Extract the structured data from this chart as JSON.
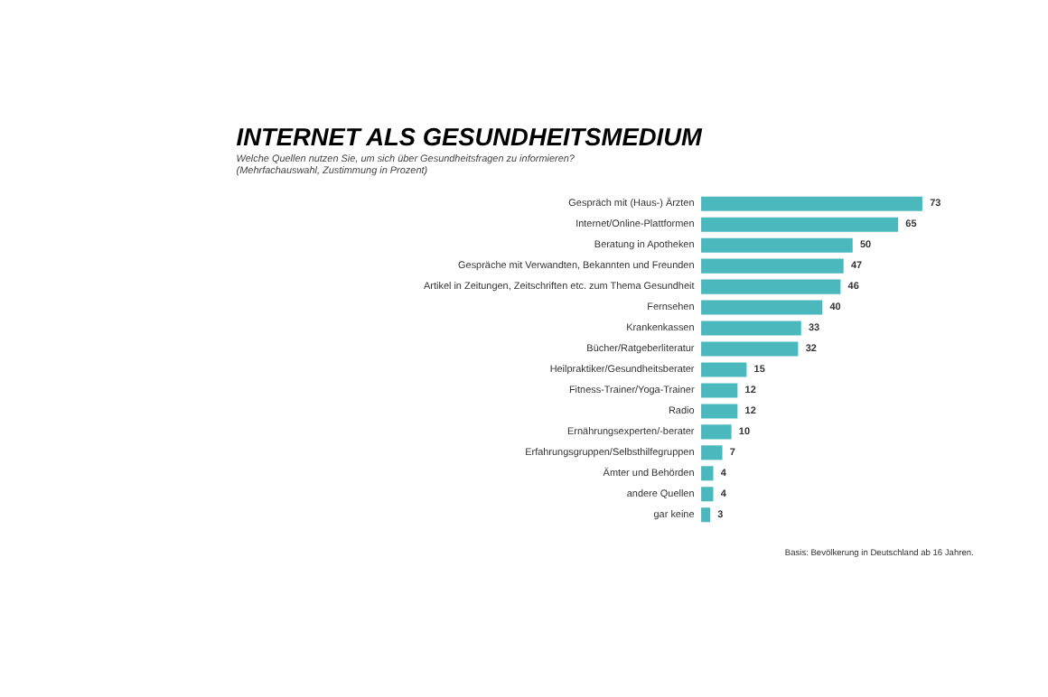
{
  "chart_data": {
    "type": "bar",
    "orientation": "horizontal",
    "title": "INTERNET ALS GESUNDHEITSMEDIUM",
    "subtitle": [
      "Welche Quellen nutzen Sie, um sich über Gesundheitsfragen zu informieren?",
      " (Mehrfachauswahl, Zustimmung in Prozent)"
    ],
    "categories": [
      "Gespräch mit (Haus-) Ärzten",
      "Internet/Online-Plattformen",
      "Beratung in Apotheken",
      "Gespräche mit Verwandten, Bekannten und Freunden",
      "Artikel in Zeitungen, Zeitschriften etc. zum Thema Gesundheit",
      "Fernsehen",
      "Krankenkassen",
      "Bücher/Ratgeberliteratur",
      "Heilpraktiker/Gesundheitsberater",
      "Fitness-Trainer/Yoga-Trainer",
      "Radio",
      "Ernährungsexperten/-berater",
      "Erfahrungsgruppen/Selbsthilfegruppen",
      "Ämter und Behörden",
      "andere Quellen",
      "gar keine"
    ],
    "values": [
      73,
      65,
      50,
      47,
      46,
      40,
      33,
      32,
      15,
      12,
      12,
      10,
      7,
      4,
      4,
      3
    ],
    "color": "#4bb8bd",
    "data_labels": true,
    "grid": false,
    "annotations": [
      "Basis: Bevölkerung in Deutschland ab 16 Jahren."
    ]
  }
}
